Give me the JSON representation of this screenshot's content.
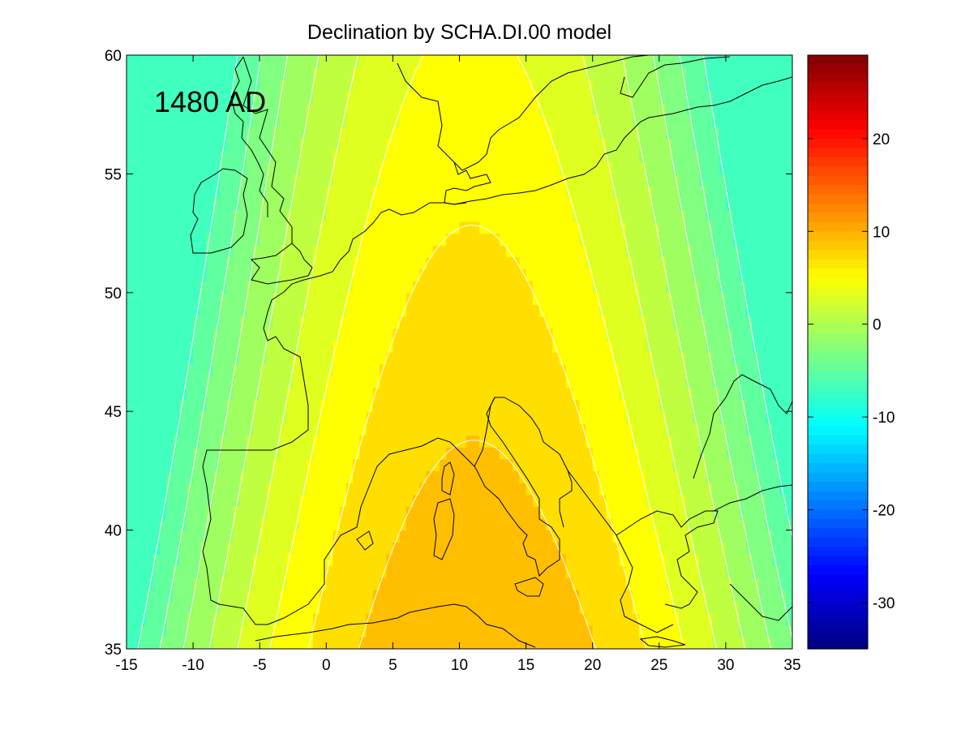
{
  "chart_data": {
    "type": "heatmap",
    "title": "Declination by SCHA.DI.00 model",
    "annotation": "1480 AD",
    "xlabel": "",
    "ylabel": "",
    "xlim": [
      -15,
      35
    ],
    "ylim": [
      35,
      60
    ],
    "x_ticks": [
      -15,
      -10,
      -5,
      0,
      5,
      10,
      15,
      20,
      25,
      30,
      35
    ],
    "y_ticks": [
      35,
      40,
      45,
      50,
      55,
      60
    ],
    "colorbar": {
      "range": [
        -35,
        29
      ],
      "ticks": [
        20,
        10,
        0,
        -10,
        -20,
        -30
      ],
      "colormap": "jet"
    },
    "contour_levels": [
      -6,
      -4,
      -2,
      0,
      2,
      4,
      6,
      8,
      10
    ],
    "field_model": {
      "description_of": "declination in degrees",
      "peak_lon": 9.5,
      "peak_lat": 33,
      "peak_value": 10.3,
      "lon_scale": 6.8,
      "lat_gradient": 0.22,
      "lon_gradient": 0.09
    },
    "grid": false,
    "coastline_color": "#000000",
    "contour_line_color": "#ffffff"
  }
}
